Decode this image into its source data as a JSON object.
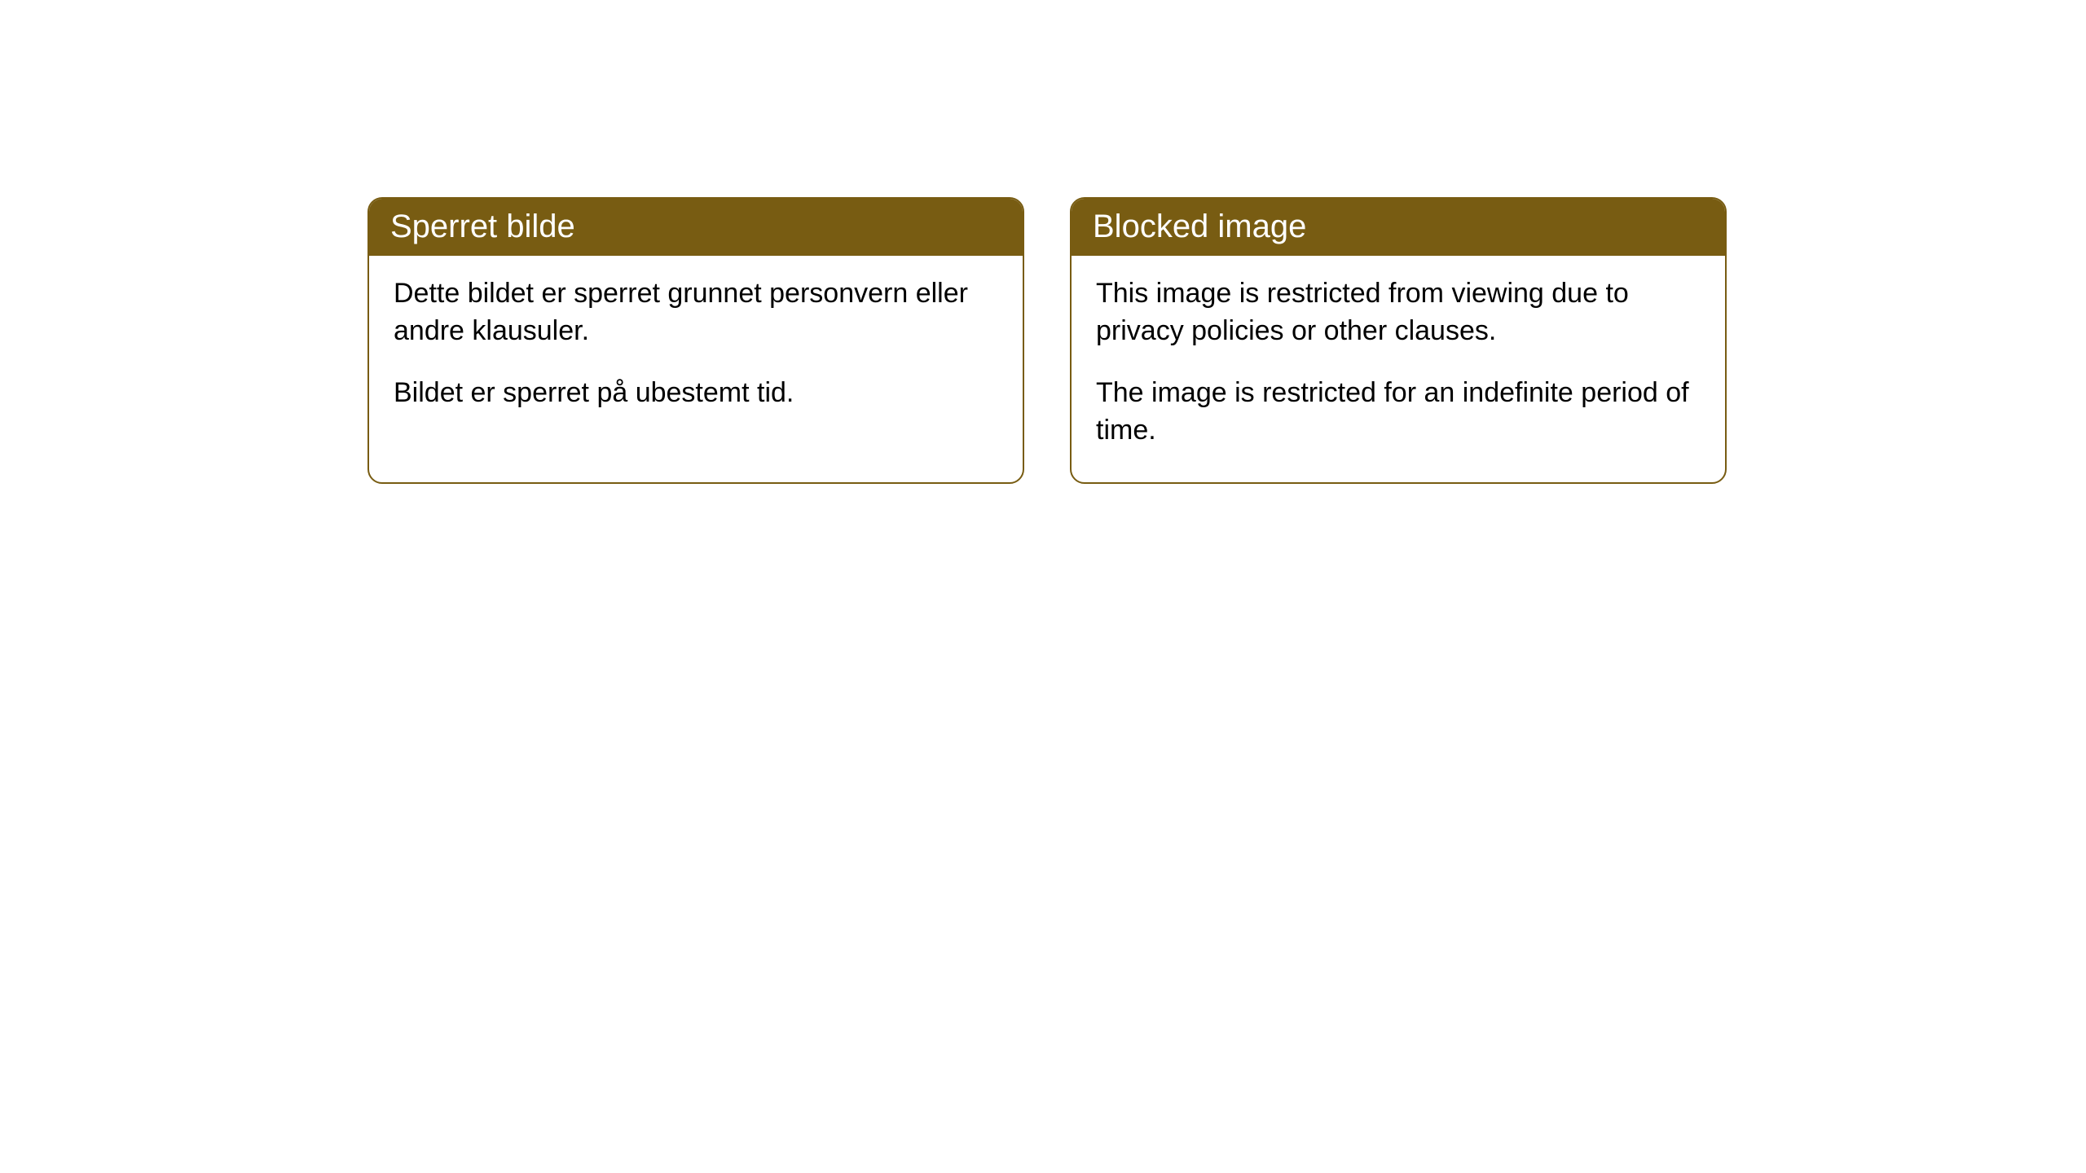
{
  "cards": [
    {
      "title": "Sperret bilde",
      "paragraph1": "Dette bildet er sperret grunnet personvern eller andre klausuler.",
      "paragraph2": "Bildet er sperret på ubestemt tid."
    },
    {
      "title": "Blocked image",
      "paragraph1": "This image is restricted from viewing due to privacy policies or other clauses.",
      "paragraph2": "The image is restricted for an indefinite period of time."
    }
  ],
  "style": {
    "header_background": "#785c12",
    "header_text_color": "#ffffff",
    "border_color": "#785c12",
    "body_background": "#ffffff",
    "body_text_color": "#000000",
    "border_radius": 18,
    "header_fontsize": 40,
    "body_fontsize": 34
  }
}
